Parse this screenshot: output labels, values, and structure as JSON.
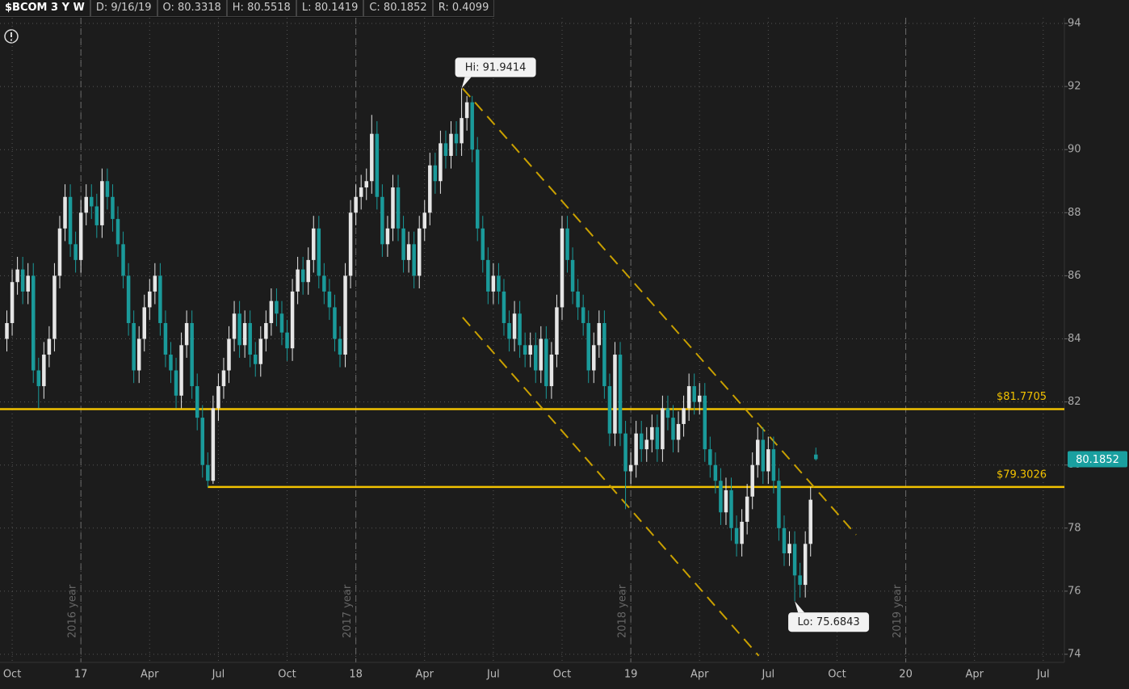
{
  "chart_data": {
    "type": "candlestick",
    "header": [
      "$BCOM 3 Y W",
      "D: 9/16/19",
      "O: 80.3318",
      "H: 80.5518",
      "L: 80.1419",
      "C: 80.1852",
      "R: 0.4099"
    ],
    "xlim": [
      -15.3,
      186
    ],
    "ylim": [
      74,
      94
    ],
    "xticks": [
      {
        "value": -13,
        "label": "Oct"
      },
      {
        "value": 0,
        "label": "17"
      },
      {
        "value": 13,
        "label": "Apr"
      },
      {
        "value": 26,
        "label": "Jul"
      },
      {
        "value": 39,
        "label": "Oct"
      },
      {
        "value": 52,
        "label": "18"
      },
      {
        "value": 65,
        "label": "Apr"
      },
      {
        "value": 78,
        "label": "Jul"
      },
      {
        "value": 91,
        "label": "Oct"
      },
      {
        "value": 104,
        "label": "19"
      },
      {
        "value": 117,
        "label": "Apr"
      },
      {
        "value": 130,
        "label": "Jul"
      },
      {
        "value": 143,
        "label": "Oct"
      },
      {
        "value": 156,
        "label": "20"
      },
      {
        "value": 169,
        "label": "Apr"
      },
      {
        "value": 182,
        "label": "Jul"
      }
    ],
    "yticks": [
      74,
      76,
      78,
      80,
      82,
      84,
      86,
      88,
      90,
      92,
      94
    ],
    "grid": true,
    "up_color": "#e6e6e6",
    "down_color": "#1a9a9a",
    "year_markers": [
      {
        "x": 0,
        "label": "2016 year"
      },
      {
        "x": 52,
        "label": "2017 year"
      },
      {
        "x": 104,
        "label": "2018 year"
      },
      {
        "x": 156,
        "label": "2019 year"
      }
    ],
    "x": [
      -14,
      -13,
      -12,
      -11,
      -10,
      -9,
      -8,
      -7,
      -6,
      -5,
      -4,
      -3,
      -2,
      -1,
      0,
      1,
      2,
      3,
      4,
      5,
      6,
      7,
      8,
      9,
      10,
      11,
      12,
      13,
      14,
      15,
      16,
      17,
      18,
      19,
      20,
      21,
      22,
      23,
      24,
      25,
      26,
      27,
      28,
      29,
      30,
      31,
      32,
      33,
      34,
      35,
      36,
      37,
      38,
      39,
      40,
      41,
      42,
      43,
      44,
      45,
      46,
      47,
      48,
      49,
      50,
      51,
      52,
      53,
      54,
      55,
      56,
      57,
      58,
      59,
      60,
      61,
      62,
      63,
      64,
      65,
      66,
      67,
      68,
      69,
      70,
      71,
      72,
      73,
      74,
      75,
      76,
      77,
      78,
      79,
      80,
      81,
      82,
      83,
      84,
      85,
      86,
      87,
      88,
      89,
      90,
      91,
      92,
      93,
      94,
      95,
      96,
      97,
      98,
      99,
      100,
      101,
      102,
      103,
      104,
      105,
      106,
      107,
      108,
      109,
      110,
      111,
      112,
      113,
      114,
      115,
      116,
      117,
      118,
      119,
      120,
      121,
      122,
      123,
      124,
      125,
      126,
      127,
      128,
      129,
      130,
      131,
      132,
      133,
      134,
      135,
      136,
      137,
      138,
      139
    ],
    "open": [
      84.0,
      84.5,
      85.8,
      86.2,
      85.5,
      86.0,
      83.0,
      82.5,
      83.5,
      84.0,
      86.0,
      87.5,
      88.5,
      87.0,
      86.5,
      88.0,
      88.5,
      88.2,
      87.6,
      89.0,
      88.5,
      87.8,
      87.0,
      86.0,
      84.5,
      83.0,
      84.0,
      85.0,
      85.5,
      86.0,
      84.5,
      83.5,
      83.0,
      82.2,
      83.8,
      84.5,
      82.5,
      81.5,
      80.0,
      79.5,
      81.8,
      82.5,
      83.0,
      84.0,
      84.8,
      83.8,
      84.5,
      83.5,
      83.2,
      84.0,
      84.5,
      85.2,
      84.8,
      84.2,
      83.7,
      85.5,
      86.2,
      85.8,
      86.5,
      87.5,
      86.0,
      85.5,
      85.0,
      84.0,
      83.5,
      86.0,
      88.0,
      88.5,
      88.8,
      89.0,
      90.5,
      88.5,
      87.0,
      87.5,
      88.8,
      87.5,
      86.5,
      87.0,
      86.0,
      87.5,
      88.0,
      89.5,
      89.0,
      90.2,
      89.8,
      90.5,
      90.2,
      91.0,
      91.5,
      90.0,
      87.5,
      86.5,
      85.5,
      86.0,
      85.5,
      84.5,
      84.0,
      84.8,
      83.8,
      83.5,
      83.8,
      83.0,
      84.0,
      82.5,
      83.5,
      85.0,
      87.5,
      86.5,
      85.5,
      85.0,
      84.5,
      83.0,
      83.8,
      84.5,
      82.5,
      81.0,
      83.5,
      81.0,
      79.8,
      80.0,
      81.0,
      80.5,
      80.8,
      81.2,
      80.5,
      81.8,
      81.5,
      80.8,
      81.3,
      81.8,
      82.5,
      82.0,
      82.2,
      80.5,
      80.0,
      79.5,
      78.5,
      79.2,
      78.0,
      77.5,
      78.2,
      79.0,
      80.0,
      80.8,
      79.8,
      80.5,
      79.5,
      78.0,
      77.2,
      77.5,
      76.5,
      76.2,
      77.5,
      80.3318
    ],
    "high": [
      84.9,
      86.2,
      86.6,
      86.6,
      86.4,
      86.4,
      83.4,
      83.9,
      84.4,
      86.4,
      87.9,
      88.9,
      88.9,
      87.4,
      88.4,
      88.9,
      88.9,
      88.6,
      89.4,
      89.4,
      88.9,
      88.2,
      87.4,
      86.4,
      84.9,
      84.4,
      85.4,
      85.9,
      86.4,
      86.4,
      84.9,
      83.9,
      83.4,
      84.2,
      84.9,
      84.9,
      82.9,
      81.9,
      80.4,
      82.2,
      82.9,
      83.4,
      84.4,
      85.2,
      85.2,
      84.9,
      84.9,
      83.9,
      84.4,
      84.9,
      85.6,
      85.6,
      85.2,
      84.6,
      85.9,
      86.6,
      86.6,
      86.9,
      87.9,
      87.9,
      86.4,
      85.9,
      85.4,
      84.4,
      86.4,
      88.4,
      88.9,
      89.2,
      89.4,
      91.1,
      90.9,
      88.9,
      87.9,
      89.2,
      89.2,
      87.9,
      87.4,
      87.4,
      87.9,
      88.4,
      89.9,
      89.9,
      90.6,
      90.6,
      90.9,
      90.9,
      91.9414,
      91.7,
      91.7,
      90.4,
      87.9,
      86.9,
      86.4,
      86.4,
      85.9,
      84.9,
      85.2,
      85.2,
      84.2,
      84.2,
      84.2,
      84.4,
      84.4,
      83.9,
      85.4,
      87.9,
      87.9,
      86.9,
      85.9,
      85.4,
      84.9,
      84.2,
      84.9,
      84.9,
      82.9,
      83.9,
      83.9,
      81.4,
      80.4,
      81.4,
      81.4,
      81.2,
      81.6,
      81.6,
      82.2,
      82.2,
      81.9,
      81.7,
      82.2,
      82.9,
      82.9,
      82.6,
      82.6,
      80.9,
      80.4,
      79.9,
      79.6,
      79.6,
      78.4,
      78.6,
      79.4,
      80.4,
      81.2,
      81.2,
      80.9,
      80.9,
      79.9,
      78.4,
      77.9,
      77.9,
      76.9,
      77.9,
      79.3,
      80.5518
    ],
    "low": [
      83.6,
      84.1,
      85.4,
      85.1,
      85.1,
      82.6,
      81.8,
      82.1,
      83.1,
      83.6,
      85.6,
      87.1,
      86.6,
      86.1,
      86.1,
      87.6,
      87.8,
      87.2,
      87.2,
      88.1,
      87.4,
      86.6,
      85.6,
      84.1,
      82.6,
      82.6,
      83.6,
      84.6,
      85.1,
      84.1,
      83.1,
      82.6,
      81.8,
      81.8,
      83.4,
      82.1,
      81.1,
      79.6,
      79.3,
      79.4,
      81.4,
      82.1,
      82.6,
      83.6,
      83.4,
      83.4,
      83.1,
      82.8,
      82.8,
      83.6,
      84.1,
      84.4,
      83.8,
      83.3,
      83.3,
      85.1,
      85.4,
      85.4,
      86.1,
      85.6,
      85.1,
      84.6,
      83.6,
      83.1,
      83.1,
      85.6,
      87.6,
      88.1,
      88.4,
      88.6,
      88.1,
      86.6,
      86.6,
      87.1,
      87.1,
      86.1,
      86.1,
      85.6,
      85.6,
      87.1,
      87.6,
      88.6,
      88.6,
      89.4,
      89.4,
      89.8,
      89.8,
      90.6,
      89.6,
      87.1,
      86.1,
      85.1,
      85.1,
      85.1,
      84.1,
      83.6,
      83.6,
      83.4,
      83.1,
      83.1,
      82.6,
      82.6,
      82.1,
      82.1,
      83.1,
      84.6,
      86.1,
      85.1,
      84.6,
      84.1,
      82.6,
      82.6,
      83.4,
      82.1,
      80.6,
      80.6,
      80.6,
      78.6,
      79.4,
      79.6,
      80.1,
      80.1,
      80.4,
      80.1,
      80.1,
      81.1,
      80.4,
      80.4,
      80.9,
      81.4,
      81.6,
      81.6,
      80.1,
      79.6,
      79.1,
      78.1,
      78.1,
      77.6,
      77.1,
      77.1,
      77.8,
      78.6,
      79.6,
      79.4,
      79.4,
      79.1,
      77.6,
      76.8,
      76.8,
      75.6843,
      75.8,
      75.8,
      77.1,
      80.1419
    ],
    "close": [
      84.5,
      85.8,
      86.2,
      85.5,
      86.0,
      83.0,
      82.5,
      83.5,
      84.0,
      86.0,
      87.5,
      88.5,
      87.0,
      86.5,
      88.0,
      88.5,
      88.2,
      87.6,
      89.0,
      88.5,
      87.8,
      87.0,
      86.0,
      84.5,
      83.0,
      84.0,
      85.0,
      85.5,
      86.0,
      84.5,
      83.5,
      83.0,
      82.2,
      83.8,
      84.5,
      82.5,
      81.5,
      80.0,
      79.5,
      81.8,
      82.5,
      83.0,
      84.0,
      84.8,
      83.8,
      84.5,
      83.5,
      83.2,
      84.0,
      84.5,
      85.2,
      84.8,
      84.2,
      83.7,
      85.5,
      86.2,
      85.8,
      86.5,
      87.5,
      86.0,
      85.5,
      85.0,
      84.0,
      83.5,
      86.0,
      88.0,
      88.5,
      88.8,
      89.0,
      90.5,
      88.5,
      87.0,
      87.5,
      88.8,
      87.5,
      86.5,
      87.0,
      86.0,
      87.5,
      88.0,
      89.5,
      89.0,
      90.2,
      89.8,
      90.5,
      90.2,
      91.0,
      91.5,
      90.0,
      87.5,
      86.5,
      85.5,
      86.0,
      85.5,
      84.5,
      84.0,
      84.8,
      83.8,
      83.5,
      83.8,
      83.0,
      84.0,
      82.5,
      83.5,
      85.0,
      87.5,
      86.5,
      85.5,
      85.0,
      84.5,
      83.0,
      83.8,
      84.5,
      82.5,
      81.0,
      83.5,
      81.0,
      79.8,
      80.0,
      81.0,
      80.5,
      80.8,
      81.2,
      80.5,
      81.8,
      81.5,
      80.8,
      81.3,
      81.8,
      82.5,
      82.0,
      82.2,
      80.5,
      80.0,
      79.5,
      78.5,
      79.2,
      78.0,
      77.5,
      78.2,
      79.0,
      80.0,
      80.8,
      79.8,
      80.5,
      79.5,
      78.0,
      77.2,
      77.5,
      76.5,
      76.2,
      77.5,
      78.9,
      80.1852
    ],
    "levels": [
      {
        "value": 81.7705,
        "label": "$81.7705",
        "from": -15.3,
        "color": "#f2c200"
      },
      {
        "value": 79.3026,
        "label": "$79.3026",
        "from": 24,
        "color": "#f2c200"
      }
    ],
    "trendlines": [
      {
        "x": [
          72.2,
          146.6
        ],
        "y": [
          91.94,
          77.79
        ],
        "color": "#c9a000"
      },
      {
        "x": [
          72.2,
          128.2
        ],
        "y": [
          84.68,
          73.95
        ],
        "color": "#c9a000"
      }
    ],
    "annotations": [
      {
        "x": 72,
        "y": 91.9414,
        "label": "Hi: 91.9414",
        "side": "above"
      },
      {
        "x": 135,
        "y": 75.6843,
        "label": "Lo: 75.6843",
        "side": "below"
      }
    ],
    "last_price": {
      "value": 80.1852,
      "label": "80.1852",
      "color": "#1aa0a0"
    }
  }
}
